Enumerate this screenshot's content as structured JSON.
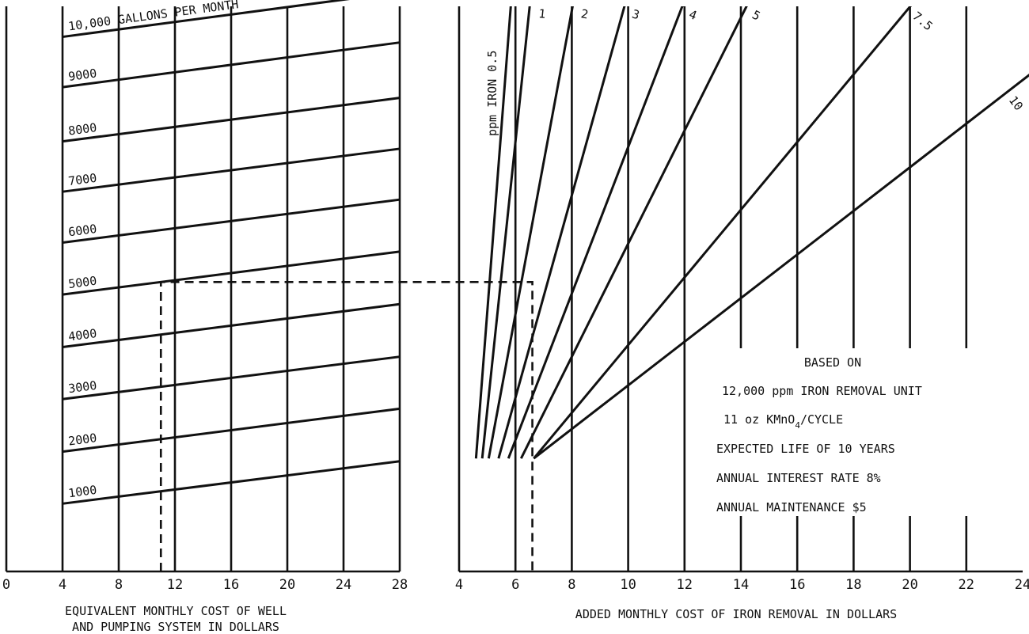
{
  "chart_data": [
    {
      "type": "line",
      "title": "",
      "xlabel_lines": [
        "EQUIVALENT MONTHLY COST OF WELL",
        "AND PUMPING SYSTEM IN DOLLARS"
      ],
      "ylabel": "",
      "x_ticks": [
        0,
        4,
        8,
        12,
        16,
        20,
        24,
        28
      ],
      "x_range": [
        0,
        28
      ],
      "grid": "vertical",
      "series": [
        {
          "name": "1000",
          "label": "1000",
          "x": [
            4,
            28
          ],
          "y": [
            0.12,
            0.195
          ]
        },
        {
          "name": "2000",
          "label": "2000",
          "x": [
            4,
            28
          ],
          "y": [
            0.212,
            0.288
          ]
        },
        {
          "name": "3000",
          "label": "3000",
          "x": [
            4,
            28
          ],
          "y": [
            0.305,
            0.38
          ]
        },
        {
          "name": "4000",
          "label": "4000",
          "x": [
            4,
            28
          ],
          "y": [
            0.397,
            0.473
          ]
        },
        {
          "name": "5000",
          "label": "5000",
          "x": [
            4,
            28
          ],
          "y": [
            0.49,
            0.566
          ]
        },
        {
          "name": "6000",
          "label": "6000",
          "x": [
            4,
            28
          ],
          "y": [
            0.582,
            0.658
          ]
        },
        {
          "name": "7000",
          "label": "7000",
          "x": [
            4,
            28
          ],
          "y": [
            0.672,
            0.748
          ]
        },
        {
          "name": "8000",
          "label": "8000",
          "x": [
            4,
            28
          ],
          "y": [
            0.761,
            0.838
          ]
        },
        {
          "name": "9000",
          "label": "9000",
          "x": [
            4,
            28
          ],
          "y": [
            0.857,
            0.936
          ]
        },
        {
          "name": "10,000 GALLONS PER MONTH",
          "label": "10,000 GALLONS PER MONTH",
          "x": [
            4,
            28
          ],
          "y": [
            0.946,
            1.025
          ]
        }
      ],
      "example_guide": {
        "x": 11,
        "series": "5000"
      }
    },
    {
      "type": "line",
      "title": "",
      "xlabel": "ADDED MONTHLY COST OF IRON REMOVAL IN DOLLARS",
      "ylabel": "",
      "x_ticks": [
        4,
        6,
        8,
        10,
        12,
        14,
        16,
        18,
        20,
        22,
        24
      ],
      "x_range": [
        4,
        24
      ],
      "grid": "vertical",
      "curve_label_prefix": "ppm IRON",
      "series": [
        {
          "name": "0.5",
          "label": "0.5",
          "x": [
            4.6,
            6.05
          ],
          "y": [
            0.2,
            1.14
          ]
        },
        {
          "name": "1",
          "label": "1",
          "x": [
            4.82,
            6.8
          ],
          "y": [
            0.2,
            1.14
          ]
        },
        {
          "name": "2",
          "label": "2",
          "x": [
            5.05,
            8.55
          ],
          "y": [
            0.2,
            1.14
          ]
        },
        {
          "name": "3",
          "label": "3",
          "x": [
            5.4,
            10.65
          ],
          "y": [
            0.2,
            1.14
          ]
        },
        {
          "name": "4",
          "label": "4",
          "x": [
            5.75,
            13.0
          ],
          "y": [
            0.2,
            1.14
          ]
        },
        {
          "name": "5",
          "label": "5",
          "x": [
            6.2,
            15.6
          ],
          "y": [
            0.2,
            1.14
          ]
        },
        {
          "name": "7.5",
          "label": "7.5",
          "x": [
            6.65,
            22.35
          ],
          "y": [
            0.2,
            1.14
          ]
        },
        {
          "name": "10",
          "label": "10",
          "x": [
            6.65,
            24.4
          ],
          "y": [
            0.2,
            0.885
          ]
        }
      ],
      "example_guide": {
        "x": 6.6,
        "series": "1"
      }
    }
  ],
  "note": {
    "heading": "BASED ON",
    "line1": "12,000 ppm IRON REMOVAL UNIT",
    "line2_prefix": "11 oz KMnO",
    "line2_sub": "4",
    "line2_suffix": "/CYCLE",
    "line3": "EXPECTED LIFE OF 10 YEARS",
    "line4": "ANNUAL INTEREST RATE 8%",
    "line5": "ANNUAL MAINTENANCE $5"
  }
}
